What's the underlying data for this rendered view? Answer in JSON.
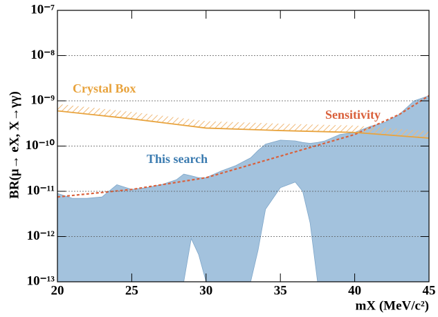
{
  "chart_data": {
    "type": "line",
    "y_label": "BR(μ→ eX, X→γγ)",
    "x_label": "mX (MeV/c²)",
    "xlim": [
      20,
      45
    ],
    "xticks": [
      20,
      25,
      30,
      35,
      40,
      45
    ],
    "ylim": [
      1e-13,
      1e-07
    ],
    "ylog": true,
    "grid": true,
    "yticks": [
      {
        "value": 1e-13,
        "label": "10⁻¹³"
      },
      {
        "value": 1e-12,
        "label": "10⁻¹²"
      },
      {
        "value": 1e-11,
        "label": "10⁻¹¹"
      },
      {
        "value": 1e-10,
        "label": "10⁻¹⁰"
      },
      {
        "value": 1e-09,
        "label": "10⁻⁹"
      },
      {
        "value": 1e-08,
        "label": "10⁻⁸"
      },
      {
        "value": 1e-07,
        "label": "10⁻⁷"
      }
    ],
    "series": [
      {
        "name": "This search",
        "style": "band",
        "color": "#a3c2dd",
        "label_color": "#3b7bb0",
        "x": [
          20,
          21,
          22,
          23,
          24,
          25,
          26,
          27,
          28,
          28.5,
          29,
          29.5,
          30,
          31,
          32,
          33,
          33.5,
          34,
          35,
          36,
          36.5,
          37,
          37.5,
          38,
          39,
          40,
          41,
          42,
          43,
          44,
          45
        ],
        "values": [
          9e-12,
          7e-12,
          7e-12,
          7.5e-12,
          1.4e-11,
          1.1e-11,
          1.2e-11,
          1.4e-11,
          1.8e-11,
          2.4e-11,
          2.2e-11,
          2e-11,
          2e-11,
          2.8e-11,
          3.7e-11,
          5.5e-11,
          8e-11,
          1.1e-10,
          1.35e-10,
          1.3e-10,
          1.2e-10,
          1.15e-10,
          1.2e-10,
          1.3e-10,
          1.8e-10,
          2e-10,
          2.7e-10,
          3.3e-10,
          5e-10,
          1e-09,
          1.3e-09
        ],
        "lower": [
          1e-13,
          1e-13,
          1e-13,
          1e-13,
          1e-13,
          1e-13,
          1e-13,
          1e-13,
          1e-13,
          1e-13,
          9e-13,
          4e-13,
          1e-13,
          1e-13,
          1e-13,
          1e-13,
          5e-13,
          4e-12,
          1.2e-11,
          1.6e-11,
          1e-11,
          2e-12,
          1e-13,
          1e-13,
          1e-13,
          1e-13,
          1e-13,
          1e-13,
          1e-13,
          1e-13,
          1e-13
        ]
      },
      {
        "name": "Sensitivity",
        "style": "dashed",
        "color": "#d9603b",
        "label_color": "#d9603b",
        "x": [
          20,
          25,
          30,
          35,
          40,
          43,
          45
        ],
        "values": [
          7.5e-12,
          1.1e-11,
          2e-11,
          6e-11,
          1.8e-10,
          5e-10,
          1.3e-09
        ]
      },
      {
        "name": "Crystal Box",
        "style": "solid",
        "color": "#e8a33d",
        "label_color": "#e8a33d",
        "x": [
          20,
          25,
          30,
          35,
          40,
          45
        ],
        "values": [
          6e-10,
          4e-10,
          2.5e-10,
          2.2e-10,
          2e-10,
          1.5e-10
        ]
      }
    ]
  }
}
